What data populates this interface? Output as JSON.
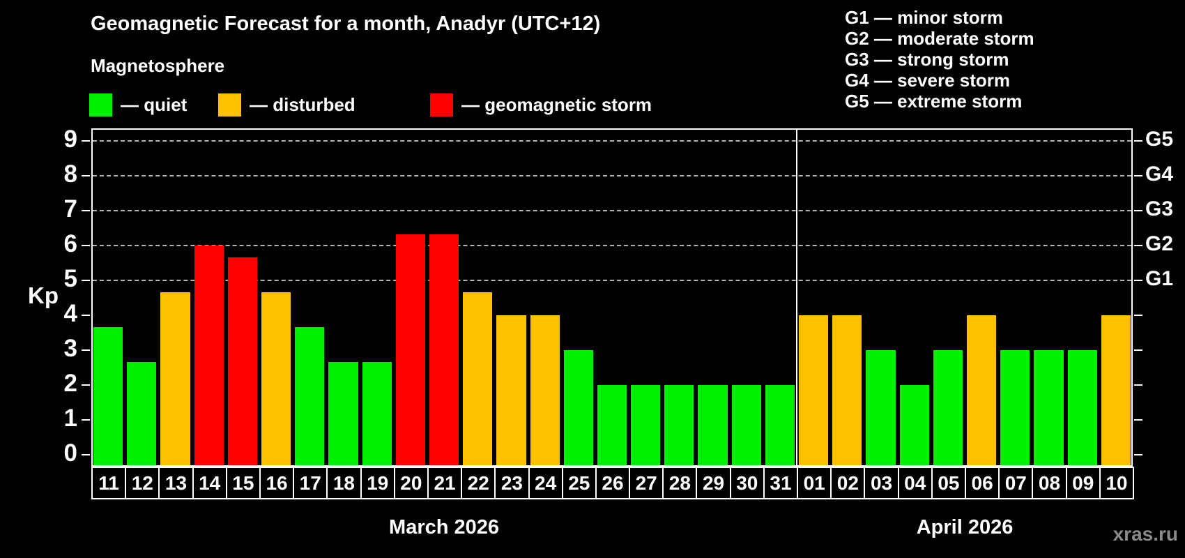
{
  "header": {
    "title": "Geomagnetic Forecast for a month, Anadyr (UTC+12)",
    "subtitle": "Magnetosphere"
  },
  "legend": {
    "quiet": "— quiet",
    "disturbed": "— disturbed",
    "storm": "— geomagnetic storm"
  },
  "g_legend": [
    "G1 — minor storm",
    "G2 — moderate storm",
    "G3 — strong storm",
    "G4 — severe storm",
    "G5 — extreme storm"
  ],
  "watermark": "xras.ru",
  "colors": {
    "quiet": "#00f000",
    "disturbed": "#ffc000",
    "storm": "#ff0000",
    "grid": "#b5b5b5",
    "axis": "#ffffff"
  },
  "chart_data": {
    "type": "bar",
    "title": "Geomagnetic Forecast for a month, Anadyr (UTC+12)",
    "ylabel": "Kp",
    "ylim": [
      -0.35,
      9.35
    ],
    "yticks": [
      0,
      1,
      2,
      3,
      4,
      5,
      6,
      7,
      8,
      9
    ],
    "grid": "dashed horizontal lines only at storm levels Kp 5-9",
    "legend_position": "top",
    "right_axis_labels": [
      {
        "label": "G1",
        "kp": 5
      },
      {
        "label": "G2",
        "kp": 6
      },
      {
        "label": "G3",
        "kp": 7
      },
      {
        "label": "G4",
        "kp": 8
      },
      {
        "label": "G5",
        "kp": 9
      }
    ],
    "months": [
      {
        "label": "March 2026",
        "days": [
          {
            "day": "11",
            "kp": 3.67,
            "state": "quiet"
          },
          {
            "day": "12",
            "kp": 2.67,
            "state": "quiet"
          },
          {
            "day": "13",
            "kp": 4.67,
            "state": "disturbed"
          },
          {
            "day": "14",
            "kp": 6.0,
            "state": "storm"
          },
          {
            "day": "15",
            "kp": 5.67,
            "state": "storm"
          },
          {
            "day": "16",
            "kp": 4.67,
            "state": "disturbed"
          },
          {
            "day": "17",
            "kp": 3.67,
            "state": "quiet"
          },
          {
            "day": "18",
            "kp": 2.67,
            "state": "quiet"
          },
          {
            "day": "19",
            "kp": 2.67,
            "state": "quiet"
          },
          {
            "day": "20",
            "kp": 6.33,
            "state": "storm"
          },
          {
            "day": "21",
            "kp": 6.33,
            "state": "storm"
          },
          {
            "day": "22",
            "kp": 4.67,
            "state": "disturbed"
          },
          {
            "day": "23",
            "kp": 4.0,
            "state": "disturbed"
          },
          {
            "day": "24",
            "kp": 4.0,
            "state": "disturbed"
          },
          {
            "day": "25",
            "kp": 3.0,
            "state": "quiet"
          },
          {
            "day": "26",
            "kp": 2.0,
            "state": "quiet"
          },
          {
            "day": "27",
            "kp": 2.0,
            "state": "quiet"
          },
          {
            "day": "28",
            "kp": 2.0,
            "state": "quiet"
          },
          {
            "day": "29",
            "kp": 2.0,
            "state": "quiet"
          },
          {
            "day": "30",
            "kp": 2.0,
            "state": "quiet"
          },
          {
            "day": "31",
            "kp": 2.0,
            "state": "quiet"
          }
        ]
      },
      {
        "label": "April 2026",
        "days": [
          {
            "day": "01",
            "kp": 4.0,
            "state": "disturbed"
          },
          {
            "day": "02",
            "kp": 4.0,
            "state": "disturbed"
          },
          {
            "day": "03",
            "kp": 3.0,
            "state": "quiet"
          },
          {
            "day": "04",
            "kp": 2.0,
            "state": "quiet"
          },
          {
            "day": "05",
            "kp": 3.0,
            "state": "quiet"
          },
          {
            "day": "06",
            "kp": 4.0,
            "state": "disturbed"
          },
          {
            "day": "07",
            "kp": 3.0,
            "state": "quiet"
          },
          {
            "day": "08",
            "kp": 3.0,
            "state": "quiet"
          },
          {
            "day": "09",
            "kp": 3.0,
            "state": "quiet"
          },
          {
            "day": "10",
            "kp": 4.0,
            "state": "disturbed"
          }
        ]
      }
    ]
  }
}
